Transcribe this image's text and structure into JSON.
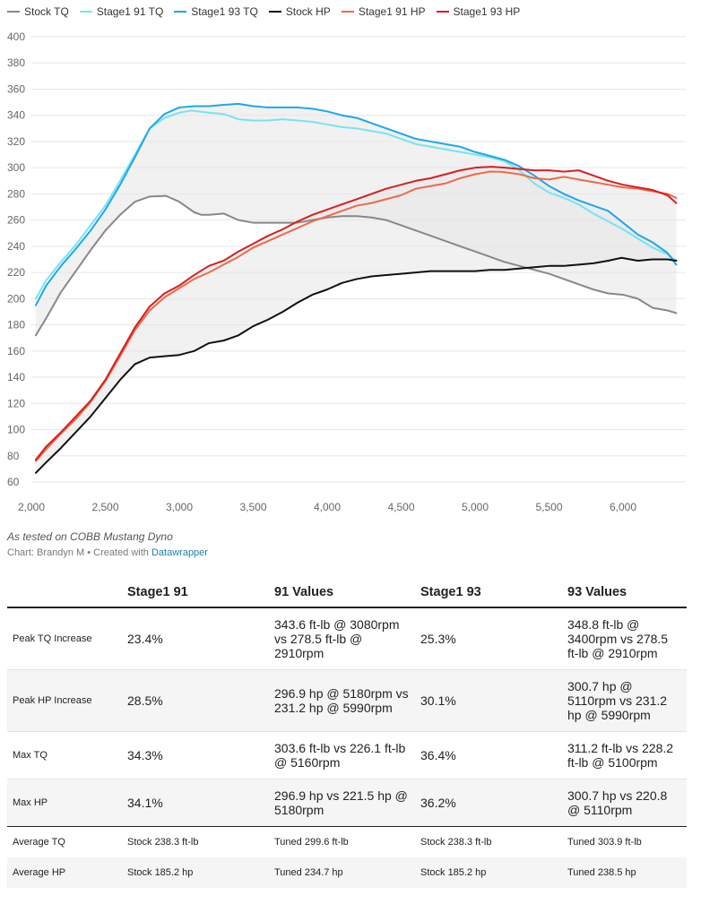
{
  "legend": [
    {
      "label": "Stock TQ",
      "color": "#888888"
    },
    {
      "label": "Stage1 91 TQ",
      "color": "#77e3f0"
    },
    {
      "label": "Stage1 93 TQ",
      "color": "#1ea7e8"
    },
    {
      "label": "Stock HP",
      "color": "#111111"
    },
    {
      "label": "Stage1 91 HP",
      "color": "#f0694a"
    },
    {
      "label": "Stage1 93 HP",
      "color": "#d71f1f"
    }
  ],
  "caption": "As tested on COBB Mustang Dyno",
  "credit": {
    "prefix": "Chart: Brandyn M • Created with ",
    "link": "Datawrapper"
  },
  "chart_data": {
    "type": "line",
    "title": "",
    "xlabel": "",
    "ylabel": "",
    "xlim": [
      2000,
      6400
    ],
    "ylim": [
      60,
      400
    ],
    "x_ticks": [
      "2,000",
      "2,500",
      "3,000",
      "3,500",
      "4,000",
      "4,500",
      "5,000",
      "5,500",
      "6,000"
    ],
    "y_ticks": [
      "400",
      "380",
      "360",
      "340",
      "320",
      "300",
      "280",
      "260",
      "240",
      "220",
      "200",
      "180",
      "160",
      "140",
      "120",
      "100",
      "80",
      "60"
    ],
    "grid": true,
    "legend_position": "top",
    "area_fills": [
      {
        "between": [
          "Stock TQ",
          "Stage1 93 TQ"
        ],
        "color": "#e6e6e6"
      },
      {
        "between": [
          "Stock HP",
          "Stage1 93 HP"
        ],
        "color": "#e6e6e6"
      }
    ],
    "series": [
      {
        "name": "Stock TQ",
        "color": "#888888",
        "points": [
          [
            2030,
            172
          ],
          [
            2100,
            185
          ],
          [
            2200,
            205
          ],
          [
            2300,
            221
          ],
          [
            2400,
            237
          ],
          [
            2500,
            252
          ],
          [
            2600,
            264
          ],
          [
            2700,
            274
          ],
          [
            2800,
            278
          ],
          [
            2910,
            278.5
          ],
          [
            3000,
            274
          ],
          [
            3100,
            266
          ],
          [
            3150,
            264
          ],
          [
            3200,
            264
          ],
          [
            3300,
            265
          ],
          [
            3400,
            260
          ],
          [
            3500,
            258
          ],
          [
            3600,
            258
          ],
          [
            3700,
            258
          ],
          [
            3800,
            258
          ],
          [
            3900,
            260
          ],
          [
            4000,
            262
          ],
          [
            4100,
            263
          ],
          [
            4200,
            263
          ],
          [
            4300,
            262
          ],
          [
            4400,
            260
          ],
          [
            4500,
            256
          ],
          [
            4600,
            252
          ],
          [
            4700,
            248
          ],
          [
            4800,
            244
          ],
          [
            4900,
            240
          ],
          [
            5000,
            236
          ],
          [
            5100,
            232
          ],
          [
            5200,
            228
          ],
          [
            5300,
            225
          ],
          [
            5400,
            222
          ],
          [
            5500,
            219
          ],
          [
            5600,
            215
          ],
          [
            5700,
            211
          ],
          [
            5800,
            207
          ],
          [
            5900,
            204
          ],
          [
            6000,
            203
          ],
          [
            6100,
            200
          ],
          [
            6200,
            193
          ],
          [
            6300,
            191
          ],
          [
            6360,
            189
          ]
        ]
      },
      {
        "name": "Stage1 91 TQ",
        "color": "#77e3f0",
        "points": [
          [
            2030,
            200
          ],
          [
            2100,
            214
          ],
          [
            2200,
            228
          ],
          [
            2300,
            241
          ],
          [
            2400,
            256
          ],
          [
            2500,
            271
          ],
          [
            2600,
            290
          ],
          [
            2700,
            310
          ],
          [
            2800,
            330
          ],
          [
            2900,
            338
          ],
          [
            3000,
            342
          ],
          [
            3080,
            343.6
          ],
          [
            3200,
            342
          ],
          [
            3300,
            341
          ],
          [
            3400,
            337
          ],
          [
            3500,
            336
          ],
          [
            3600,
            336
          ],
          [
            3700,
            337
          ],
          [
            3800,
            336
          ],
          [
            3900,
            335
          ],
          [
            4000,
            333
          ],
          [
            4100,
            331
          ],
          [
            4200,
            330
          ],
          [
            4300,
            328
          ],
          [
            4400,
            326
          ],
          [
            4500,
            322
          ],
          [
            4600,
            318
          ],
          [
            4700,
            316
          ],
          [
            4800,
            314
          ],
          [
            4900,
            312
          ],
          [
            5000,
            310
          ],
          [
            5100,
            308
          ],
          [
            5200,
            305
          ],
          [
            5300,
            298
          ],
          [
            5400,
            288
          ],
          [
            5500,
            281
          ],
          [
            5600,
            277
          ],
          [
            5700,
            272
          ],
          [
            5800,
            265
          ],
          [
            5900,
            259
          ],
          [
            6000,
            253
          ],
          [
            6100,
            246
          ],
          [
            6200,
            239
          ],
          [
            6300,
            234
          ],
          [
            6360,
            229
          ]
        ]
      },
      {
        "name": "Stage1 93 TQ",
        "color": "#1ea7e8",
        "points": [
          [
            2030,
            195
          ],
          [
            2100,
            210
          ],
          [
            2200,
            225
          ],
          [
            2300,
            238
          ],
          [
            2400,
            252
          ],
          [
            2500,
            268
          ],
          [
            2600,
            287
          ],
          [
            2700,
            308
          ],
          [
            2800,
            330
          ],
          [
            2900,
            341
          ],
          [
            3000,
            346
          ],
          [
            3100,
            347
          ],
          [
            3200,
            347
          ],
          [
            3300,
            348
          ],
          [
            3400,
            348.8
          ],
          [
            3500,
            347
          ],
          [
            3600,
            346
          ],
          [
            3700,
            346
          ],
          [
            3800,
            346
          ],
          [
            3900,
            345
          ],
          [
            4000,
            343
          ],
          [
            4100,
            340
          ],
          [
            4200,
            338
          ],
          [
            4300,
            334
          ],
          [
            4400,
            330
          ],
          [
            4500,
            326
          ],
          [
            4600,
            322
          ],
          [
            4700,
            320
          ],
          [
            4800,
            318
          ],
          [
            4900,
            316
          ],
          [
            5000,
            312
          ],
          [
            5100,
            309
          ],
          [
            5200,
            306
          ],
          [
            5300,
            301
          ],
          [
            5400,
            294
          ],
          [
            5500,
            286
          ],
          [
            5600,
            280
          ],
          [
            5700,
            275
          ],
          [
            5800,
            271
          ],
          [
            5900,
            267
          ],
          [
            6000,
            258
          ],
          [
            6100,
            249
          ],
          [
            6200,
            243
          ],
          [
            6300,
            235
          ],
          [
            6360,
            226
          ]
        ]
      },
      {
        "name": "Stock HP",
        "color": "#111111",
        "points": [
          [
            2030,
            67
          ],
          [
            2100,
            75
          ],
          [
            2200,
            86
          ],
          [
            2300,
            98
          ],
          [
            2400,
            110
          ],
          [
            2500,
            124
          ],
          [
            2600,
            138
          ],
          [
            2700,
            150
          ],
          [
            2800,
            155
          ],
          [
            2900,
            156
          ],
          [
            3000,
            157
          ],
          [
            3100,
            160
          ],
          [
            3200,
            166
          ],
          [
            3300,
            168
          ],
          [
            3400,
            172
          ],
          [
            3500,
            179
          ],
          [
            3600,
            184
          ],
          [
            3700,
            190
          ],
          [
            3800,
            197
          ],
          [
            3900,
            203
          ],
          [
            4000,
            207
          ],
          [
            4100,
            212
          ],
          [
            4200,
            215
          ],
          [
            4300,
            217
          ],
          [
            4400,
            218
          ],
          [
            4500,
            219
          ],
          [
            4600,
            220
          ],
          [
            4700,
            221
          ],
          [
            4800,
            221
          ],
          [
            4900,
            221
          ],
          [
            5000,
            221
          ],
          [
            5100,
            222
          ],
          [
            5200,
            222
          ],
          [
            5300,
            223
          ],
          [
            5400,
            224
          ],
          [
            5500,
            225
          ],
          [
            5600,
            225
          ],
          [
            5700,
            226
          ],
          [
            5800,
            227
          ],
          [
            5900,
            229
          ],
          [
            5990,
            231.2
          ],
          [
            6100,
            229
          ],
          [
            6200,
            230
          ],
          [
            6300,
            230
          ],
          [
            6360,
            229
          ]
        ]
      },
      {
        "name": "Stage1 91 HP",
        "color": "#f0694a",
        "points": [
          [
            2030,
            76
          ],
          [
            2100,
            85
          ],
          [
            2200,
            97
          ],
          [
            2300,
            108
          ],
          [
            2400,
            121
          ],
          [
            2500,
            137
          ],
          [
            2600,
            156
          ],
          [
            2700,
            176
          ],
          [
            2800,
            191
          ],
          [
            2900,
            201
          ],
          [
            3000,
            208
          ],
          [
            3100,
            215
          ],
          [
            3200,
            220
          ],
          [
            3300,
            226
          ],
          [
            3400,
            232
          ],
          [
            3500,
            239
          ],
          [
            3600,
            244
          ],
          [
            3700,
            249
          ],
          [
            3800,
            254
          ],
          [
            3900,
            259
          ],
          [
            4000,
            263
          ],
          [
            4100,
            267
          ],
          [
            4200,
            271
          ],
          [
            4300,
            273
          ],
          [
            4400,
            276
          ],
          [
            4500,
            279
          ],
          [
            4600,
            284
          ],
          [
            4700,
            286
          ],
          [
            4800,
            288
          ],
          [
            4900,
            292
          ],
          [
            5000,
            295
          ],
          [
            5100,
            297
          ],
          [
            5180,
            296.9
          ],
          [
            5300,
            295
          ],
          [
            5400,
            292
          ],
          [
            5500,
            291
          ],
          [
            5600,
            293
          ],
          [
            5700,
            291
          ],
          [
            5800,
            289
          ],
          [
            5900,
            287
          ],
          [
            6000,
            285
          ],
          [
            6100,
            284
          ],
          [
            6200,
            282
          ],
          [
            6300,
            280
          ],
          [
            6360,
            277
          ]
        ]
      },
      {
        "name": "Stage1 93 HP",
        "color": "#d71f1f",
        "points": [
          [
            2030,
            77
          ],
          [
            2100,
            87
          ],
          [
            2200,
            98
          ],
          [
            2300,
            110
          ],
          [
            2400,
            122
          ],
          [
            2500,
            138
          ],
          [
            2600,
            158
          ],
          [
            2700,
            178
          ],
          [
            2800,
            194
          ],
          [
            2900,
            204
          ],
          [
            3000,
            210
          ],
          [
            3100,
            218
          ],
          [
            3200,
            225
          ],
          [
            3300,
            229
          ],
          [
            3400,
            236
          ],
          [
            3500,
            242
          ],
          [
            3600,
            248
          ],
          [
            3700,
            253
          ],
          [
            3800,
            259
          ],
          [
            3900,
            264
          ],
          [
            4000,
            268
          ],
          [
            4100,
            272
          ],
          [
            4200,
            276
          ],
          [
            4300,
            280
          ],
          [
            4400,
            284
          ],
          [
            4500,
            287
          ],
          [
            4600,
            290
          ],
          [
            4700,
            292
          ],
          [
            4800,
            295
          ],
          [
            4900,
            298
          ],
          [
            5000,
            300
          ],
          [
            5110,
            300.7
          ],
          [
            5200,
            300
          ],
          [
            5300,
            299
          ],
          [
            5400,
            298
          ],
          [
            5500,
            298
          ],
          [
            5600,
            297
          ],
          [
            5700,
            298
          ],
          [
            5800,
            294
          ],
          [
            5900,
            290
          ],
          [
            6000,
            287
          ],
          [
            6100,
            285
          ],
          [
            6200,
            283
          ],
          [
            6300,
            279
          ],
          [
            6360,
            273
          ]
        ]
      }
    ]
  },
  "table": {
    "headers": [
      "",
      "Stage1 91",
      "91 Values",
      "Stage1 93",
      "93 Values"
    ],
    "rows": [
      [
        "Peak TQ Increase",
        "23.4%",
        "343.6 ft-lb @ 3080rpm vs 278.5 ft-lb @ 2910rpm",
        "25.3%",
        "348.8 ft-lb @ 3400rpm vs 278.5 ft-lb @ 2910rpm"
      ],
      [
        "Peak HP Increase",
        "28.5%",
        "296.9 hp @ 5180rpm vs 231.2 hp @ 5990rpm",
        "30.1%",
        "300.7 hp @ 5110rpm vs 231.2 hp @ 5990rpm"
      ],
      [
        "Max TQ",
        "34.3%",
        "303.6 ft-lb vs 226.1 ft-lb @ 5160rpm",
        "36.4%",
        "311.2 ft-lb vs 228.2 ft-lb @ 5100rpm"
      ],
      [
        "Max HP",
        "34.1%",
        "296.9 hp vs 221.5 hp @ 5180rpm",
        "36.2%",
        "300.7 hp vs 220.8 @ 5110rpm"
      ],
      [
        "Average TQ",
        "Stock 238.3 ft-lb",
        "Tuned 299.6 ft-lb",
        "Stock 238.3 ft-lb",
        "Tuned 303.9 ft-lb"
      ],
      [
        "Average HP",
        "Stock 185.2 hp",
        "Tuned 234.7 hp",
        "Stock 185.2 hp",
        "Tuned 238.5 hp"
      ]
    ]
  }
}
